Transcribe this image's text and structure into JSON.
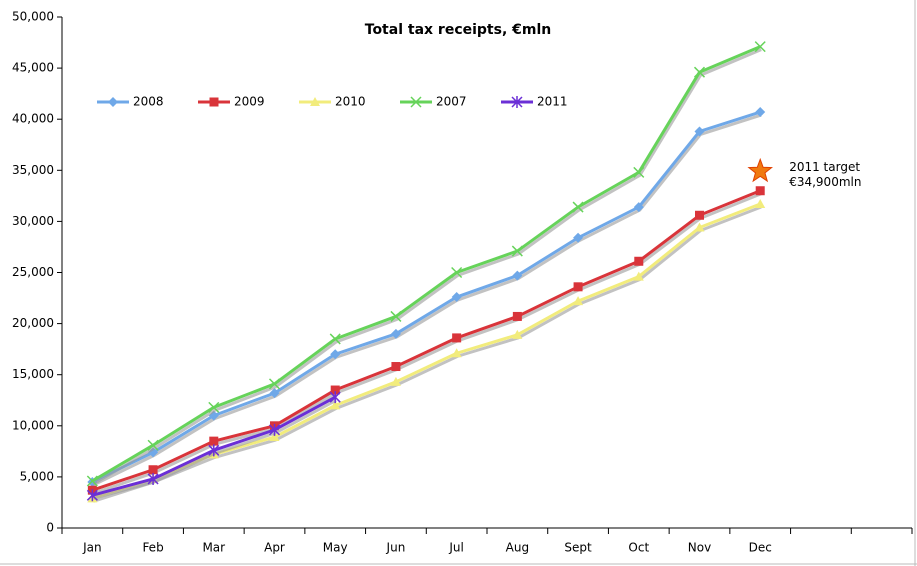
{
  "chart_data": {
    "type": "line",
    "title": "Total tax receipts, €mln",
    "categories": [
      "Jan",
      "Feb",
      "Mar",
      "Apr",
      "May",
      "Jun",
      "Jul",
      "Aug",
      "Sept",
      "Oct",
      "Nov",
      "Dec",
      null,
      null
    ],
    "series": [
      {
        "name": "2008",
        "color": "#6fa8e8",
        "marker": "diamond",
        "values": [
          4500,
          7400,
          11000,
          13200,
          17000,
          19000,
          22600,
          24700,
          28400,
          31400,
          38800,
          40700,
          null,
          null
        ]
      },
      {
        "name": "2009",
        "color": "#d9343a",
        "marker": "square",
        "values": [
          3700,
          5700,
          8500,
          10000,
          13500,
          15800,
          18600,
          20700,
          23600,
          26100,
          30600,
          33000,
          null,
          null
        ]
      },
      {
        "name": "2010",
        "color": "#f2ec7c",
        "marker": "triangle",
        "values": [
          2900,
          4800,
          7200,
          8900,
          12000,
          14300,
          17100,
          18900,
          22200,
          24600,
          29400,
          31700,
          null,
          null
        ]
      },
      {
        "name": "2007",
        "color": "#66d35a",
        "marker": "x",
        "values": [
          4600,
          8100,
          11800,
          14100,
          18500,
          20700,
          25000,
          27100,
          31400,
          34800,
          44600,
          47100,
          null,
          null
        ]
      },
      {
        "name": "2011",
        "color": "#6b2fd6",
        "marker": "asterisk",
        "values": [
          3200,
          4800,
          7600,
          9600,
          12800,
          null,
          null,
          null,
          null,
          null,
          null,
          null,
          null,
          null
        ]
      }
    ],
    "target": {
      "value": 34900,
      "label": [
        "2011 target",
        "€34,900mln"
      ],
      "color": "#f07a10"
    },
    "ylim": [
      0,
      50000
    ],
    "yticks": [
      0,
      {
        "value": 5000,
        "label": "5,000"
      },
      {
        "value": 10000,
        "label": "10,000"
      },
      {
        "value": 15000,
        "label": "15,000"
      },
      {
        "value": 20000,
        "label": "20,000"
      },
      {
        "value": 25000,
        "label": "25,000"
      },
      {
        "value": 30000,
        "label": "30,000"
      },
      {
        "value": 35000,
        "label": "35,000"
      },
      {
        "value": 40000,
        "label": "40,000"
      },
      {
        "value": 45000,
        "label": "45,000"
      },
      {
        "value": 50000,
        "label": "50,000"
      }
    ],
    "grid": false,
    "legend": "upper left"
  }
}
